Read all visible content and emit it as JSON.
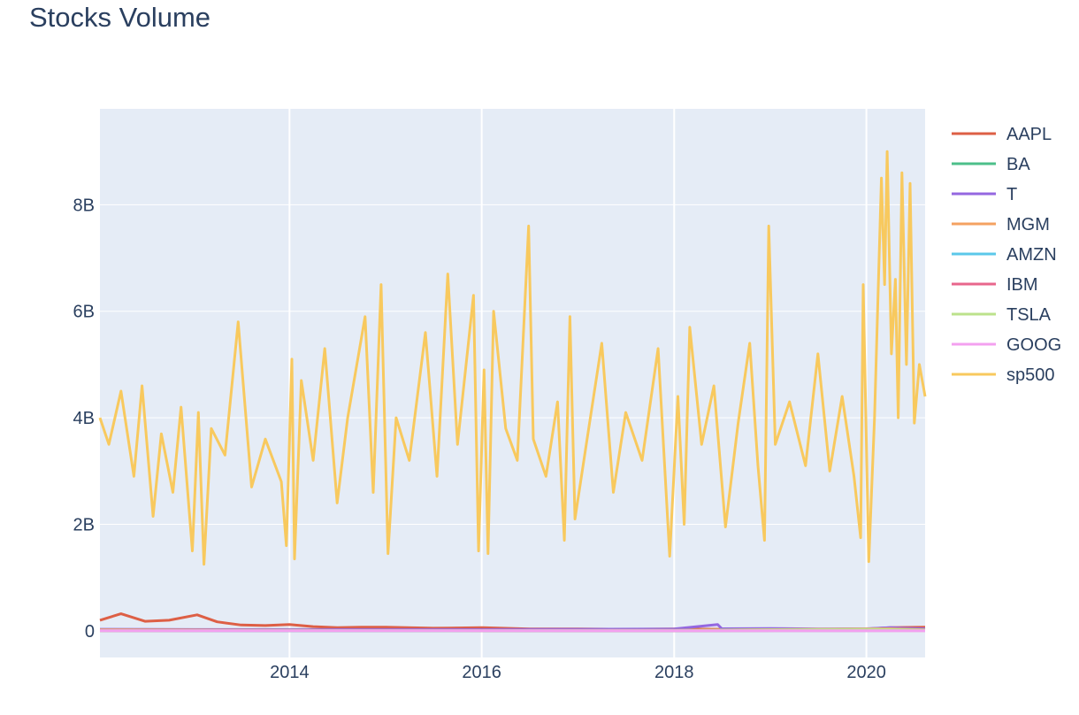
{
  "chart_data": {
    "type": "line",
    "title": "Stocks Volume",
    "xlabel": "",
    "ylabel": "",
    "x_range": [
      "2012-01-12",
      "2020-08-11"
    ],
    "x_ticks": [
      {
        "date": "2014-01-01",
        "label": "2014"
      },
      {
        "date": "2016-01-01",
        "label": "2016"
      },
      {
        "date": "2018-01-01",
        "label": "2018"
      },
      {
        "date": "2020-01-01",
        "label": "2020"
      }
    ],
    "ylim": [
      -500000000,
      9800000000
    ],
    "y_ticks": [
      {
        "value": 0,
        "label": "0"
      },
      {
        "value": 2000000000,
        "label": "2B"
      },
      {
        "value": 4000000000,
        "label": "4B"
      },
      {
        "value": 6000000000,
        "label": "6B"
      },
      {
        "value": 8000000000,
        "label": "8B"
      }
    ],
    "grid": true,
    "legend_position": "right",
    "series": [
      {
        "name": "AAPL",
        "color": "#dd5f45",
        "points": [
          [
            "2012-01-12",
            200000000
          ],
          [
            "2012-04-01",
            320000000
          ],
          [
            "2012-07-01",
            180000000
          ],
          [
            "2012-10-01",
            200000000
          ],
          [
            "2013-01-15",
            300000000
          ],
          [
            "2013-04-01",
            170000000
          ],
          [
            "2013-07-01",
            110000000
          ],
          [
            "2013-10-01",
            100000000
          ],
          [
            "2014-01-01",
            120000000
          ],
          [
            "2014-04-01",
            80000000
          ],
          [
            "2014-07-01",
            60000000
          ],
          [
            "2014-10-01",
            70000000
          ],
          [
            "2015-01-01",
            70000000
          ],
          [
            "2015-07-01",
            50000000
          ],
          [
            "2016-01-01",
            60000000
          ],
          [
            "2016-07-01",
            35000000
          ],
          [
            "2017-01-01",
            35000000
          ],
          [
            "2017-07-01",
            30000000
          ],
          [
            "2018-01-01",
            35000000
          ],
          [
            "2018-07-01",
            30000000
          ],
          [
            "2019-01-01",
            40000000
          ],
          [
            "2019-07-01",
            30000000
          ],
          [
            "2020-01-01",
            35000000
          ],
          [
            "2020-04-01",
            60000000
          ],
          [
            "2020-08-11",
            70000000
          ]
        ]
      },
      {
        "name": "BA",
        "color": "#4cbf8a",
        "points": [
          [
            "2012-01-12",
            5000000
          ],
          [
            "2014-01-01",
            4000000
          ],
          [
            "2016-01-01",
            4000000
          ],
          [
            "2018-01-01",
            4000000
          ],
          [
            "2019-06-01",
            8000000
          ],
          [
            "2020-04-01",
            40000000
          ],
          [
            "2020-08-11",
            20000000
          ]
        ]
      },
      {
        "name": "T",
        "color": "#9467e0",
        "points": [
          [
            "2012-01-12",
            30000000
          ],
          [
            "2013-01-01",
            25000000
          ],
          [
            "2014-01-01",
            25000000
          ],
          [
            "2015-01-01",
            25000000
          ],
          [
            "2016-01-01",
            25000000
          ],
          [
            "2017-01-01",
            30000000
          ],
          [
            "2018-01-01",
            35000000
          ],
          [
            "2018-06-15",
            120000000
          ],
          [
            "2018-07-01",
            40000000
          ],
          [
            "2019-01-01",
            45000000
          ],
          [
            "2019-07-01",
            35000000
          ],
          [
            "2020-01-01",
            40000000
          ],
          [
            "2020-04-01",
            60000000
          ],
          [
            "2020-08-11",
            40000000
          ]
        ]
      },
      {
        "name": "MGM",
        "color": "#f4a261",
        "points": [
          [
            "2012-01-12",
            20000000
          ],
          [
            "2014-01-01",
            10000000
          ],
          [
            "2016-01-01",
            8000000
          ],
          [
            "2018-01-01",
            8000000
          ],
          [
            "2020-04-01",
            40000000
          ],
          [
            "2020-08-11",
            20000000
          ]
        ]
      },
      {
        "name": "AMZN",
        "color": "#5bc8ea",
        "points": [
          [
            "2012-01-12",
            4000000
          ],
          [
            "2014-01-01",
            3500000
          ],
          [
            "2016-01-01",
            4000000
          ],
          [
            "2018-01-01",
            4500000
          ],
          [
            "2020-01-01",
            5000000
          ],
          [
            "2020-08-11",
            6000000
          ]
        ]
      },
      {
        "name": "IBM",
        "color": "#e8668c",
        "points": [
          [
            "2012-01-12",
            4000000
          ],
          [
            "2014-01-01",
            4500000
          ],
          [
            "2016-01-01",
            4000000
          ],
          [
            "2018-01-01",
            4000000
          ],
          [
            "2020-01-01",
            4500000
          ],
          [
            "2020-08-11",
            5000000
          ]
        ]
      },
      {
        "name": "TSLA",
        "color": "#bce28c",
        "points": [
          [
            "2012-01-12",
            4000000
          ],
          [
            "2014-01-01",
            8000000
          ],
          [
            "2016-01-01",
            5000000
          ],
          [
            "2018-01-01",
            8000000
          ],
          [
            "2020-02-01",
            30000000
          ],
          [
            "2020-08-11",
            15000000
          ]
        ]
      },
      {
        "name": "GOOG",
        "color": "#f3a0f0",
        "points": [
          [
            "2012-01-12",
            3000000
          ],
          [
            "2014-01-01",
            3000000
          ],
          [
            "2016-01-01",
            2000000
          ],
          [
            "2018-01-01",
            1500000
          ],
          [
            "2020-01-01",
            1500000
          ],
          [
            "2020-08-11",
            2000000
          ]
        ]
      },
      {
        "name": "sp500",
        "color": "#f8c95e",
        "points": [
          [
            "2012-01-12",
            4000000000
          ],
          [
            "2012-02-15",
            3500000000
          ],
          [
            "2012-04-01",
            4500000000
          ],
          [
            "2012-05-20",
            2900000000
          ],
          [
            "2012-06-20",
            4600000000
          ],
          [
            "2012-08-01",
            2150000000
          ],
          [
            "2012-09-01",
            3700000000
          ],
          [
            "2012-10-15",
            2600000000
          ],
          [
            "2012-11-15",
            4200000000
          ],
          [
            "2012-12-28",
            1500000000
          ],
          [
            "2013-01-20",
            4100000000
          ],
          [
            "2013-02-10",
            1250000000
          ],
          [
            "2013-03-10",
            3800000000
          ],
          [
            "2013-05-01",
            3300000000
          ],
          [
            "2013-06-20",
            5800000000
          ],
          [
            "2013-08-10",
            2700000000
          ],
          [
            "2013-10-01",
            3600000000
          ],
          [
            "2013-12-01",
            2800000000
          ],
          [
            "2013-12-20",
            1600000000
          ],
          [
            "2014-01-10",
            5100000000
          ],
          [
            "2014-01-20",
            1350000000
          ],
          [
            "2014-02-15",
            4700000000
          ],
          [
            "2014-04-01",
            3200000000
          ],
          [
            "2014-05-15",
            5300000000
          ],
          [
            "2014-07-01",
            2400000000
          ],
          [
            "2014-08-10",
            4000000000
          ],
          [
            "2014-10-15",
            5900000000
          ],
          [
            "2014-11-15",
            2600000000
          ],
          [
            "2014-12-15",
            6500000000
          ],
          [
            "2015-01-10",
            1450000000
          ],
          [
            "2015-02-10",
            4000000000
          ],
          [
            "2015-04-01",
            3200000000
          ],
          [
            "2015-06-01",
            5600000000
          ],
          [
            "2015-07-15",
            2900000000
          ],
          [
            "2015-08-25",
            6700000000
          ],
          [
            "2015-10-01",
            3500000000
          ],
          [
            "2015-12-01",
            6300000000
          ],
          [
            "2015-12-20",
            1500000000
          ],
          [
            "2016-01-10",
            4900000000
          ],
          [
            "2016-01-25",
            1450000000
          ],
          [
            "2016-02-15",
            6000000000
          ],
          [
            "2016-04-01",
            3800000000
          ],
          [
            "2016-05-15",
            3200000000
          ],
          [
            "2016-06-27",
            7600000000
          ],
          [
            "2016-07-15",
            3600000000
          ],
          [
            "2016-09-01",
            2900000000
          ],
          [
            "2016-10-15",
            4300000000
          ],
          [
            "2016-11-10",
            1700000000
          ],
          [
            "2016-12-01",
            5900000000
          ],
          [
            "2016-12-20",
            2100000000
          ],
          [
            "2017-02-01",
            3500000000
          ],
          [
            "2017-04-01",
            5400000000
          ],
          [
            "2017-05-15",
            2600000000
          ],
          [
            "2017-07-01",
            4100000000
          ],
          [
            "2017-09-01",
            3200000000
          ],
          [
            "2017-11-01",
            5300000000
          ],
          [
            "2017-12-15",
            1400000000
          ],
          [
            "2018-01-15",
            4400000000
          ],
          [
            "2018-02-08",
            2000000000
          ],
          [
            "2018-03-01",
            5700000000
          ],
          [
            "2018-04-15",
            3500000000
          ],
          [
            "2018-06-01",
            4600000000
          ],
          [
            "2018-07-15",
            1950000000
          ],
          [
            "2018-09-01",
            3900000000
          ],
          [
            "2018-10-15",
            5400000000
          ],
          [
            "2018-11-15",
            3100000000
          ],
          [
            "2018-12-10",
            1700000000
          ],
          [
            "2018-12-26",
            7600000000
          ],
          [
            "2019-01-20",
            3500000000
          ],
          [
            "2019-03-15",
            4300000000
          ],
          [
            "2019-05-15",
            3100000000
          ],
          [
            "2019-07-01",
            5200000000
          ],
          [
            "2019-08-15",
            3000000000
          ],
          [
            "2019-10-01",
            4400000000
          ],
          [
            "2019-11-15",
            2900000000
          ],
          [
            "2019-12-10",
            1750000000
          ],
          [
            "2019-12-20",
            6500000000
          ],
          [
            "2020-01-10",
            1300000000
          ],
          [
            "2020-02-01",
            4000000000
          ],
          [
            "2020-02-27",
            8500000000
          ],
          [
            "2020-03-10",
            6500000000
          ],
          [
            "2020-03-20",
            9000000000
          ],
          [
            "2020-04-05",
            5200000000
          ],
          [
            "2020-04-20",
            6600000000
          ],
          [
            "2020-05-01",
            4000000000
          ],
          [
            "2020-05-15",
            8600000000
          ],
          [
            "2020-06-01",
            5000000000
          ],
          [
            "2020-06-15",
            8400000000
          ],
          [
            "2020-07-01",
            3900000000
          ],
          [
            "2020-07-20",
            5000000000
          ],
          [
            "2020-08-11",
            4400000000
          ]
        ]
      }
    ]
  }
}
